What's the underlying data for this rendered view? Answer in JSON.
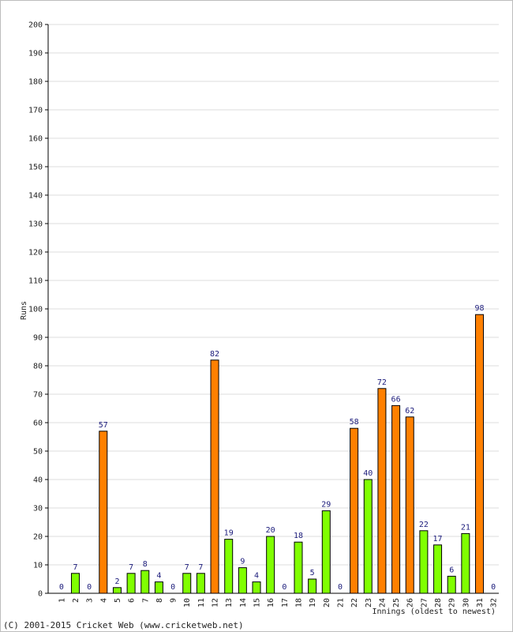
{
  "chart_data": {
    "type": "bar",
    "ylabel": "Runs",
    "xlabel": "Innings (oldest to newest)",
    "ylim": [
      0,
      200
    ],
    "y_ticks": [
      0,
      10,
      20,
      30,
      40,
      50,
      60,
      70,
      80,
      90,
      100,
      110,
      120,
      130,
      140,
      150,
      160,
      170,
      180,
      190,
      200
    ],
    "categories": [
      "1",
      "2",
      "3",
      "4",
      "5",
      "6",
      "7",
      "8",
      "9",
      "10",
      "11",
      "12",
      "13",
      "14",
      "15",
      "16",
      "17",
      "18",
      "19",
      "20",
      "21",
      "22",
      "23",
      "24",
      "25",
      "26",
      "27",
      "28",
      "29",
      "30",
      "31",
      "32"
    ],
    "values": [
      0,
      7,
      0,
      57,
      2,
      7,
      8,
      4,
      0,
      7,
      7,
      82,
      19,
      9,
      4,
      20,
      0,
      18,
      5,
      29,
      0,
      58,
      40,
      72,
      66,
      62,
      22,
      17,
      6,
      21,
      98,
      0
    ],
    "fifty_plus": [
      false,
      false,
      false,
      true,
      false,
      false,
      false,
      false,
      false,
      false,
      false,
      true,
      false,
      false,
      false,
      false,
      false,
      false,
      false,
      false,
      false,
      true,
      false,
      true,
      true,
      true,
      false,
      false,
      false,
      false,
      true,
      false
    ],
    "grid": true,
    "colors": {
      "normal": "#80ff00",
      "fifty_plus": "#ff8000",
      "bar_outline": "#000000",
      "grid": "#dddddd",
      "data_label": "#1a1a7a"
    }
  },
  "footer": "(C) 2001-2015 Cricket Web (www.cricketweb.net)"
}
